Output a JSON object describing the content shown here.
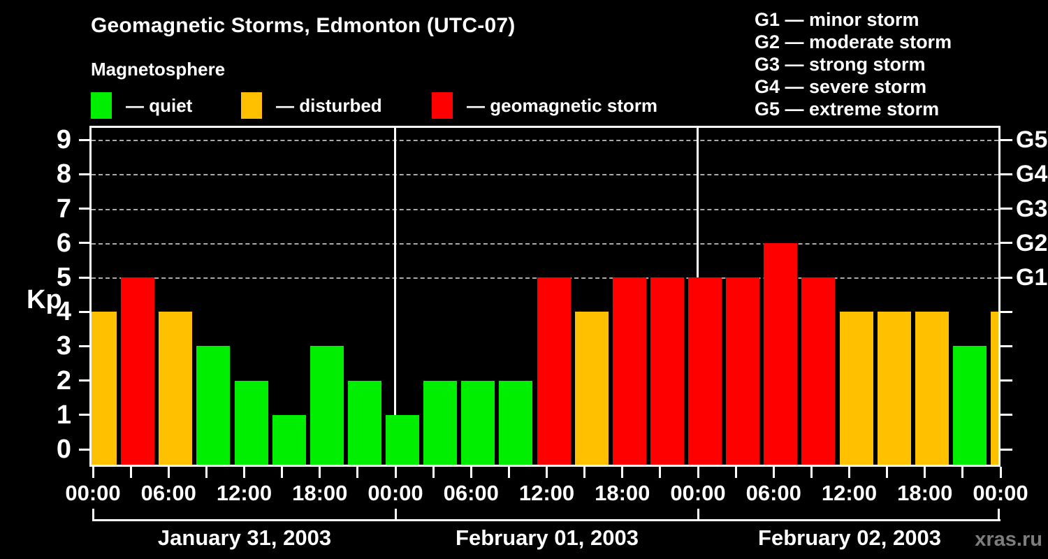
{
  "title": "Geomagnetic Storms, Edmonton (UTC-07)",
  "subtitle": "Magnetosphere",
  "kp_legend": {
    "items": [
      {
        "key": "quiet",
        "label": "— quiet",
        "color": "#00ee00"
      },
      {
        "key": "disturbed",
        "label": "— disturbed",
        "color": "#ffc000"
      },
      {
        "key": "storm",
        "label": "— geomagnetic storm",
        "color": "#ff0000"
      }
    ]
  },
  "g_scale_legend": {
    "items": [
      {
        "label": "G1 — minor storm"
      },
      {
        "label": "G2 — moderate storm"
      },
      {
        "label": "G3 — strong storm"
      },
      {
        "label": "G4 — severe storm"
      },
      {
        "label": "G5 — extreme storm"
      }
    ]
  },
  "axes": {
    "y_label": "Kp",
    "y_ticks": [
      "0",
      "1",
      "2",
      "3",
      "4",
      "5",
      "6",
      "7",
      "8",
      "9"
    ],
    "right_labels": [
      {
        "kp": 5,
        "label": "G1"
      },
      {
        "kp": 6,
        "label": "G2"
      },
      {
        "kp": 7,
        "label": "G3"
      },
      {
        "kp": 8,
        "label": "G4"
      },
      {
        "kp": 9,
        "label": "G5"
      }
    ],
    "x_tick_labels": [
      "00:00",
      "06:00",
      "12:00",
      "18:00",
      "00:00",
      "06:00",
      "12:00",
      "18:00",
      "00:00",
      "06:00",
      "12:00",
      "18:00",
      "00:00"
    ],
    "date_labels": [
      "January 31, 2003",
      "February 01, 2003",
      "February 02, 2003"
    ]
  },
  "watermark": "xras.ru",
  "colors": {
    "background": "#000000",
    "axis": "#ffffff",
    "grid": "#aaaaaa",
    "text": "#ffffff",
    "watermark": "#7d7d7d",
    "quiet": "#00ee00",
    "disturbed": "#ffc000",
    "storm": "#ff0000"
  },
  "chart_data": {
    "type": "bar",
    "title": "Geomagnetic Storms, Edmonton (UTC-07)",
    "ylabel": "Kp",
    "ylim": [
      0,
      9.5
    ],
    "gridlines_at_kp": [
      5,
      6,
      7,
      8,
      9
    ],
    "interval_hours": 3,
    "timezone": "UTC-07",
    "color_rule": {
      "quiet": "Kp < 4",
      "disturbed": "Kp = 4",
      "storm": "Kp >= 5"
    },
    "days": [
      {
        "date": "January 31, 2003",
        "kp": [
          4,
          5,
          4,
          3,
          2,
          1,
          3,
          2
        ]
      },
      {
        "date": "February 01, 2003",
        "kp": [
          1,
          2,
          2,
          2,
          5,
          4,
          5,
          5
        ]
      },
      {
        "date": "February 02, 2003",
        "kp": [
          5,
          5,
          6,
          5,
          4,
          4,
          4,
          3
        ]
      }
    ],
    "bars": [
      {
        "date": "January 31, 2003",
        "time": "00:00",
        "kp": 4,
        "category": "disturbed"
      },
      {
        "date": "January 31, 2003",
        "time": "03:00",
        "kp": 5,
        "category": "storm"
      },
      {
        "date": "January 31, 2003",
        "time": "06:00",
        "kp": 4,
        "category": "disturbed"
      },
      {
        "date": "January 31, 2003",
        "time": "09:00",
        "kp": 3,
        "category": "quiet"
      },
      {
        "date": "January 31, 2003",
        "time": "12:00",
        "kp": 2,
        "category": "quiet"
      },
      {
        "date": "January 31, 2003",
        "time": "15:00",
        "kp": 1,
        "category": "quiet"
      },
      {
        "date": "January 31, 2003",
        "time": "18:00",
        "kp": 3,
        "category": "quiet"
      },
      {
        "date": "January 31, 2003",
        "time": "21:00",
        "kp": 2,
        "category": "quiet"
      },
      {
        "date": "February 01, 2003",
        "time": "00:00",
        "kp": 1,
        "category": "quiet"
      },
      {
        "date": "February 01, 2003",
        "time": "03:00",
        "kp": 2,
        "category": "quiet"
      },
      {
        "date": "February 01, 2003",
        "time": "06:00",
        "kp": 2,
        "category": "quiet"
      },
      {
        "date": "February 01, 2003",
        "time": "09:00",
        "kp": 2,
        "category": "quiet"
      },
      {
        "date": "February 01, 2003",
        "time": "12:00",
        "kp": 5,
        "category": "storm"
      },
      {
        "date": "February 01, 2003",
        "time": "15:00",
        "kp": 4,
        "category": "disturbed"
      },
      {
        "date": "February 01, 2003",
        "time": "18:00",
        "kp": 5,
        "category": "storm"
      },
      {
        "date": "February 01, 2003",
        "time": "21:00",
        "kp": 5,
        "category": "storm"
      },
      {
        "date": "February 02, 2003",
        "time": "00:00",
        "kp": 5,
        "category": "storm"
      },
      {
        "date": "February 02, 2003",
        "time": "03:00",
        "kp": 5,
        "category": "storm"
      },
      {
        "date": "February 02, 2003",
        "time": "06:00",
        "kp": 6,
        "category": "storm"
      },
      {
        "date": "February 02, 2003",
        "time": "09:00",
        "kp": 5,
        "category": "storm"
      },
      {
        "date": "February 02, 2003",
        "time": "12:00",
        "kp": 4,
        "category": "disturbed"
      },
      {
        "date": "February 02, 2003",
        "time": "15:00",
        "kp": 4,
        "category": "disturbed"
      },
      {
        "date": "February 02, 2003",
        "time": "18:00",
        "kp": 4,
        "category": "disturbed"
      },
      {
        "date": "February 02, 2003",
        "time": "21:00",
        "kp": 3,
        "category": "quiet"
      },
      {
        "date": "February 03, 2003",
        "time": "00:00",
        "kp": 4,
        "category": "disturbed",
        "partial": true
      }
    ]
  }
}
